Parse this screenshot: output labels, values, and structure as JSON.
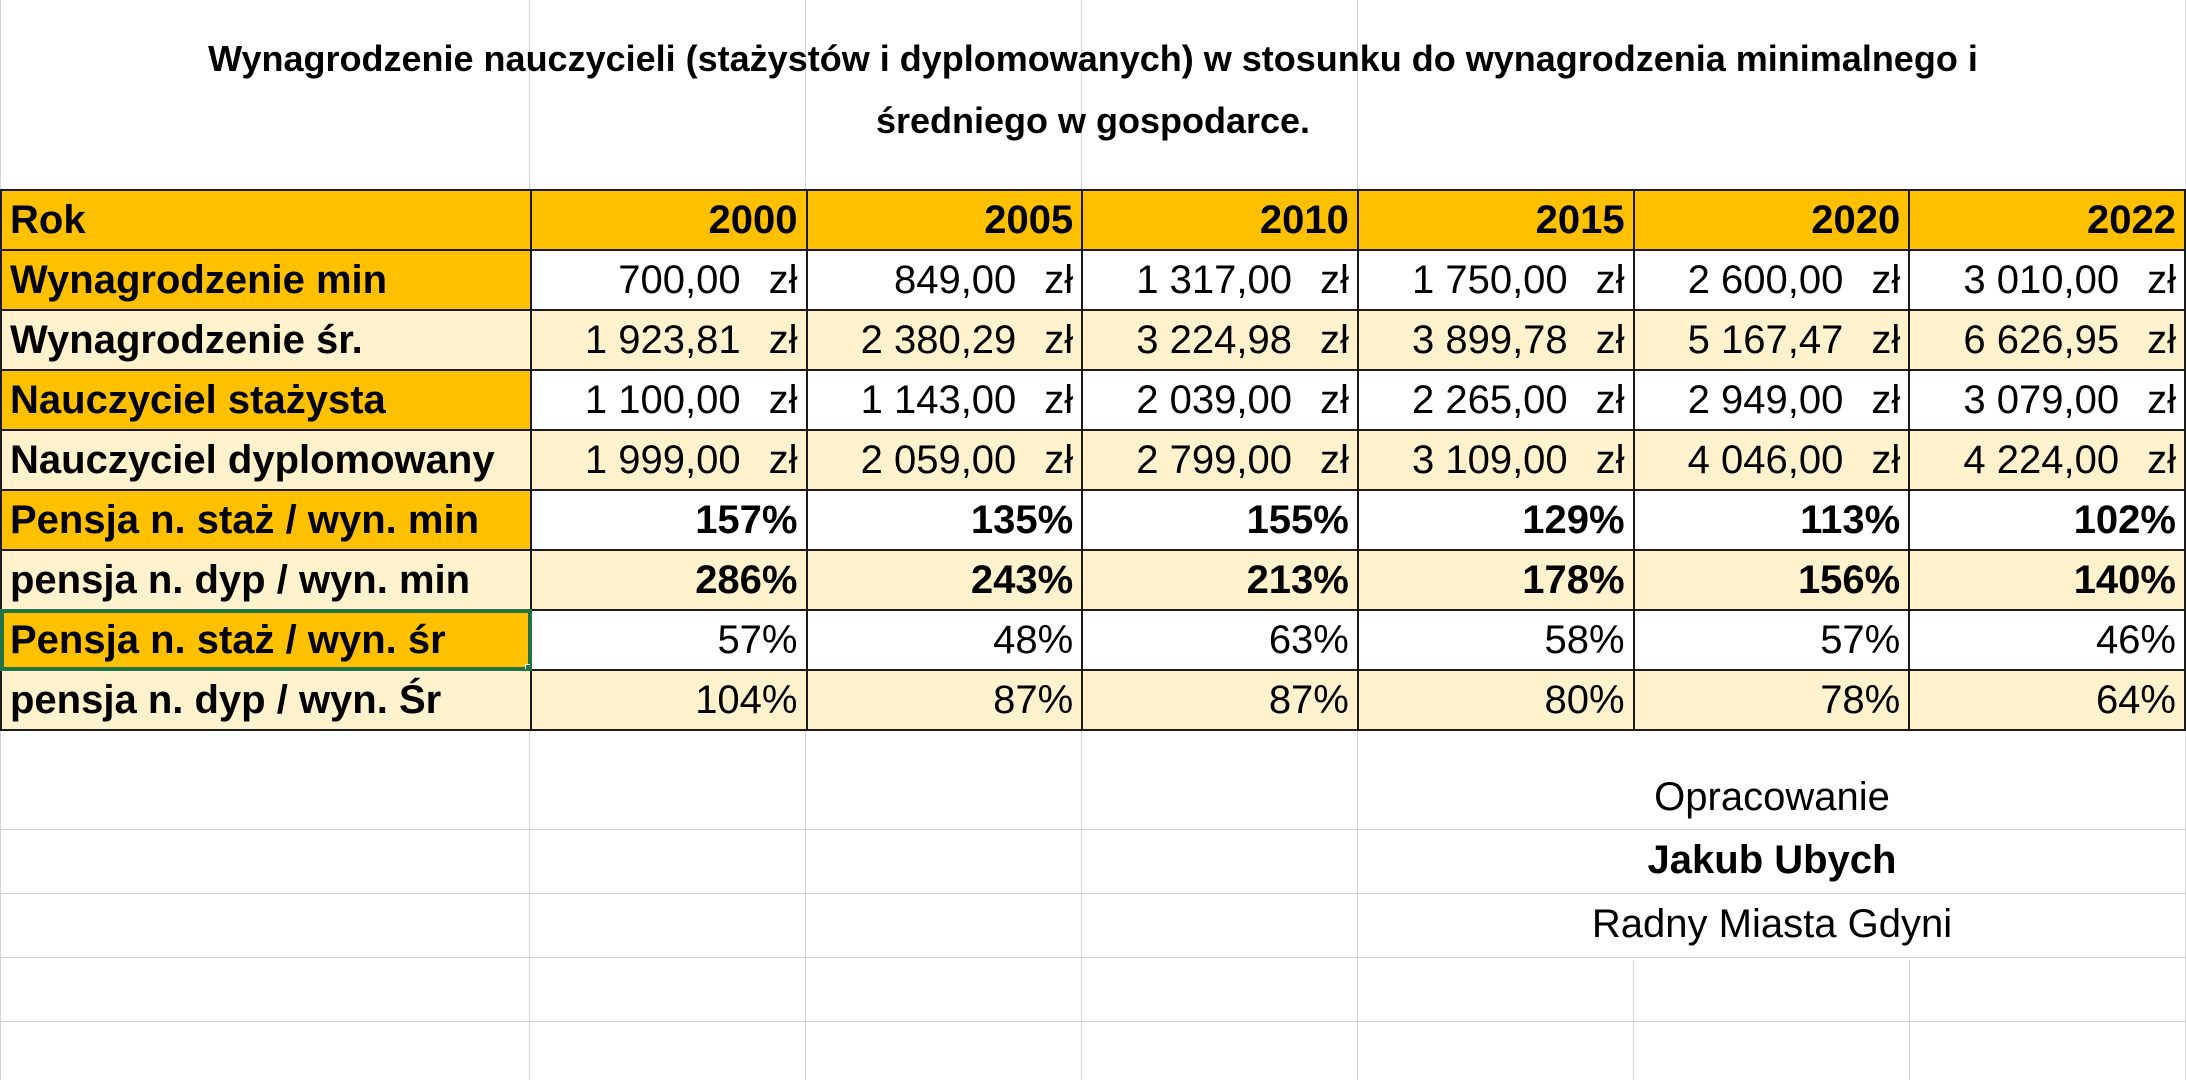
{
  "title_line1": "Wynagrodzenie nauczycieli (stażystów i dyplomowanych) w stosunku do wynagrodzenia minimalnego i",
  "title_line2": "średniego w gospodarce.",
  "header": {
    "label": "Rok",
    "years": [
      "2000",
      "2005",
      "2010",
      "2015",
      "2020",
      "2022"
    ]
  },
  "currency": "zł",
  "rows": [
    {
      "label": "Wynagrodzenie min",
      "values": [
        "700,00",
        "849,00",
        "1 317,00",
        "1 750,00",
        "2 600,00",
        "3 010,00"
      ]
    },
    {
      "label": "Wynagrodzenie śr.",
      "values": [
        "1 923,81",
        "2 380,29",
        "3 224,98",
        "3 899,78",
        "5 167,47",
        "6 626,95"
      ]
    },
    {
      "label": "Nauczyciel stażysta",
      "values": [
        "1 100,00",
        "1 143,00",
        "2 039,00",
        "2 265,00",
        "2 949,00",
        "3 079,00"
      ]
    },
    {
      "label": "Nauczyciel dyplomowany",
      "values": [
        "1 999,00",
        "2 059,00",
        "2 799,00",
        "3 109,00",
        "4 046,00",
        "4 224,00"
      ]
    },
    {
      "label": "Pensja n. staż / wyn. min",
      "values": [
        "157%",
        "135%",
        "155%",
        "129%",
        "113%",
        "102%"
      ]
    },
    {
      "label": "pensja n. dyp / wyn. min",
      "values": [
        "286%",
        "243%",
        "213%",
        "178%",
        "156%",
        "140%"
      ]
    },
    {
      "label": "Pensja n. staż / wyn. śr",
      "values": [
        "57%",
        "48%",
        "63%",
        "58%",
        "57%",
        "46%"
      ]
    },
    {
      "label": "pensja n. dyp / wyn. Śr",
      "values": [
        "104%",
        "87%",
        "87%",
        "80%",
        "78%",
        "64%"
      ]
    }
  ],
  "credit": {
    "line1": "Opracowanie",
    "line2": "Jakub Ubych",
    "line3": "Radny Miasta Gdyni"
  },
  "colors": {
    "header_fill": "#ffc000",
    "light_fill": "#fff2cc",
    "selection": "#217346",
    "gridline": "#d4d4d4"
  }
}
